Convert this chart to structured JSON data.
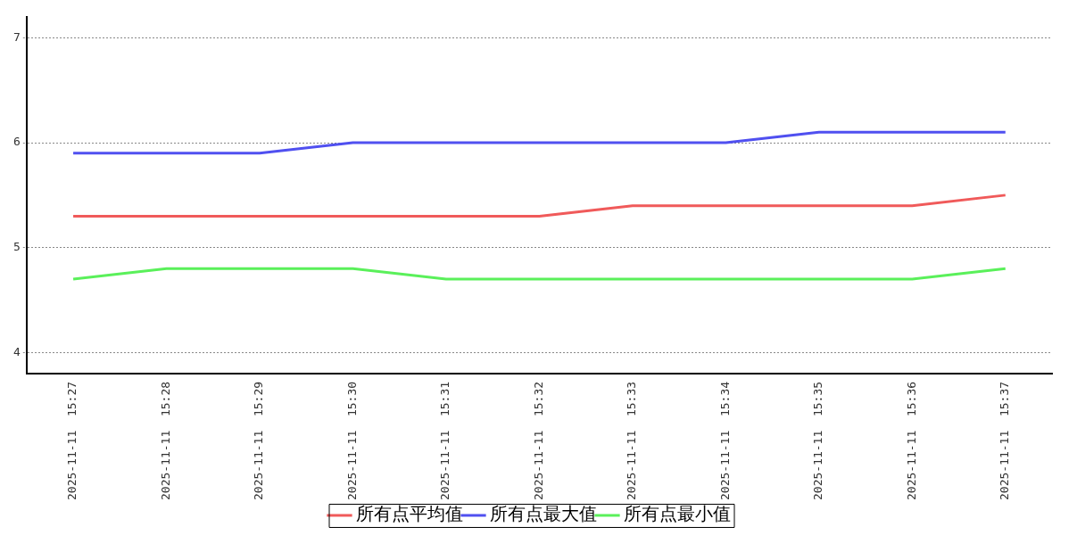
{
  "chart_data": {
    "type": "line",
    "categories": [
      "2025-11-11  15:27",
      "2025-11-11  15:28",
      "2025-11-11  15:29",
      "2025-11-11  15:30",
      "2025-11-11  15:31",
      "2025-11-11  15:32",
      "2025-11-11  15:33",
      "2025-11-11  15:34",
      "2025-11-11  15:35",
      "2025-11-11  15:36",
      "2025-11-11  15:37"
    ],
    "series": [
      {
        "name": "所有点平均值",
        "color": "#f05a5a",
        "values": [
          5.3,
          5.3,
          5.3,
          5.3,
          5.3,
          5.3,
          5.4,
          5.4,
          5.4,
          5.4,
          5.5
        ]
      },
      {
        "name": "所有点最大值",
        "color": "#5050f0",
        "values": [
          5.9,
          5.9,
          5.9,
          6.0,
          6.0,
          6.0,
          6.0,
          6.0,
          6.1,
          6.1,
          6.1
        ]
      },
      {
        "name": "所有点最小值",
        "color": "#5af05a",
        "values": [
          4.7,
          4.8,
          4.8,
          4.8,
          4.7,
          4.7,
          4.7,
          4.7,
          4.7,
          4.7,
          4.8
        ]
      }
    ],
    "ylim": [
      3.8,
      7.2
    ],
    "yticks": [
      4,
      5,
      6,
      7
    ],
    "grid": "y",
    "legend": "bottom",
    "marker": "none",
    "line_style": "solid"
  }
}
